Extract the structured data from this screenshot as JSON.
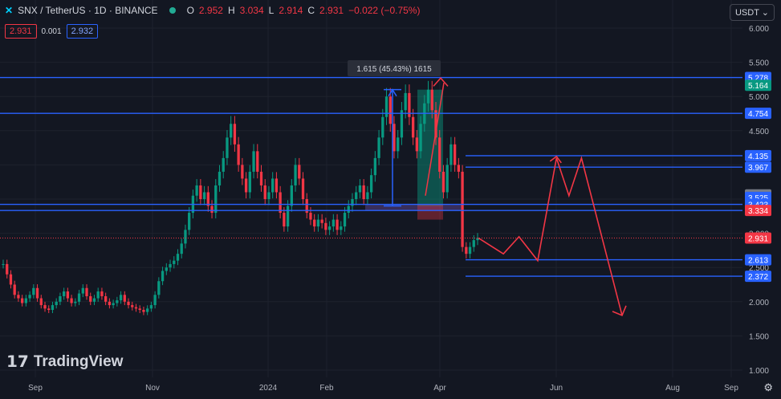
{
  "header": {
    "symbol": "SNX / TetherUS · 1D · BINANCE",
    "o_label": "O",
    "o_value": "2.952",
    "h_label": "H",
    "h_value": "3.034",
    "l_label": "L",
    "l_value": "2.914",
    "c_label": "C",
    "c_value": "2.931",
    "change": "−0.022 (−0.75%)",
    "sell_price": "2.931",
    "spread": "0.001",
    "buy_price": "2.932"
  },
  "currency": "USDT",
  "logo": "TradingView",
  "measure_label": "1.615 (45.43%) 1615",
  "chart_data": {
    "type": "candlestick",
    "y_axis_ticks": [
      "6.000",
      "5.500",
      "5.000",
      "4.500",
      "4.000",
      "3.500",
      "3.000",
      "2.500",
      "2.000",
      "1.500",
      "1.000"
    ],
    "y_range": [
      1.0,
      6.0
    ],
    "x_axis_labels": [
      "Sep",
      "Nov",
      "2024",
      "Feb",
      "Apr",
      "Jun",
      "Aug",
      "Sep"
    ],
    "current_price": 2.931,
    "horizontal_levels": [
      {
        "price": 5.278,
        "label": "5.278"
      },
      {
        "price": 4.754,
        "label": "4.754"
      },
      {
        "price": 4.135,
        "label": "4.135"
      },
      {
        "price": 3.967,
        "label": "3.967"
      },
      {
        "price": 3.423,
        "label": "3.423"
      },
      {
        "price": 3.334,
        "label": "3.334"
      },
      {
        "price": 2.613,
        "label": "2.613"
      },
      {
        "price": 2.372,
        "label": "2.372"
      }
    ],
    "axis_badges": [
      {
        "price": 5.278,
        "label": "5.278",
        "color": "#2962ff"
      },
      {
        "price": 5.164,
        "label": "5.164",
        "color": "#089981"
      },
      {
        "price": 4.754,
        "label": "4.754",
        "color": "#2962ff"
      },
      {
        "price": 4.135,
        "label": "4.135",
        "color": "#2962ff"
      },
      {
        "price": 3.967,
        "label": "3.967",
        "color": "#2962ff"
      },
      {
        "price": 3.562,
        "label": "3.562",
        "color": "#787b86"
      },
      {
        "price": 3.525,
        "label": "3.525",
        "color": "#2962ff"
      },
      {
        "price": 3.423,
        "label": "3.423",
        "color": "#2962ff"
      },
      {
        "price": 3.334,
        "label": "3.334",
        "color": "#f23645"
      },
      {
        "price": 2.931,
        "label": "2.931",
        "color": "#f23645"
      },
      {
        "price": 2.613,
        "label": "2.613",
        "color": "#2962ff"
      },
      {
        "price": 2.372,
        "label": "2.372",
        "color": "#2962ff"
      }
    ],
    "closes": [
      2.55,
      2.4,
      2.25,
      2.1,
      2.05,
      1.98,
      2.05,
      2.1,
      2.2,
      2.05,
      1.95,
      1.9,
      1.88,
      1.95,
      2.0,
      2.08,
      2.15,
      2.05,
      1.98,
      2.0,
      2.12,
      2.2,
      2.08,
      2.0,
      2.05,
      2.15,
      2.08,
      2.0,
      1.95,
      1.98,
      2.02,
      2.1,
      2.0,
      1.95,
      1.92,
      1.9,
      1.88,
      1.85,
      1.9,
      1.95,
      2.1,
      2.3,
      2.45,
      2.5,
      2.55,
      2.6,
      2.7,
      2.85,
      3.05,
      3.3,
      3.55,
      3.7,
      3.5,
      3.6,
      3.4,
      3.3,
      3.7,
      3.9,
      4.1,
      4.4,
      4.6,
      4.3,
      4.0,
      3.8,
      3.6,
      3.9,
      4.2,
      3.9,
      3.7,
      3.5,
      3.6,
      3.8,
      3.6,
      3.3,
      3.1,
      3.4,
      3.7,
      4.0,
      3.8,
      3.5,
      3.3,
      3.2,
      3.1,
      3.2,
      3.15,
      3.05,
      3.1,
      3.2,
      3.05,
      3.1,
      3.3,
      3.4,
      3.5,
      3.6,
      3.7,
      3.5,
      3.6,
      3.85,
      4.1,
      4.4,
      4.7,
      5.0,
      4.6,
      4.2,
      4.4,
      4.8,
      5.05,
      4.7,
      4.4,
      4.2,
      4.6,
      4.9,
      5.1,
      4.8,
      4.4,
      3.9,
      3.6,
      4.0,
      4.3,
      4.0,
      3.9,
      2.8,
      2.7,
      2.8,
      2.9,
      2.931
    ],
    "forecast_path": [
      [
        2.931,
        0
      ],
      [
        2.7,
        8
      ],
      [
        2.95,
        13
      ],
      [
        2.6,
        19
      ],
      [
        4.1,
        25
      ],
      [
        3.55,
        29
      ],
      [
        4.1,
        33
      ],
      [
        1.8,
        46
      ]
    ],
    "measure_range": {
      "from": 3.4,
      "to": 5.1
    }
  }
}
